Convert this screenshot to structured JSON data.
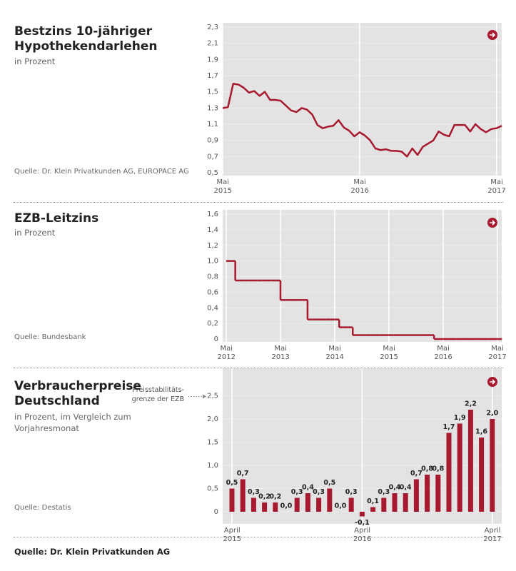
{
  "chart_data": [
    {
      "type": "line",
      "title": "Bestzins 10-jähriger Hypothekendarlehen",
      "subtitle": "in Prozent",
      "source": "Quelle: Dr. Klein Privatkunden AG, EUROPACE AG",
      "categories": [
        "Mai 2015",
        null,
        null,
        null,
        null,
        null,
        null,
        null,
        null,
        null,
        null,
        null,
        null,
        null,
        null,
        null,
        null,
        null,
        null,
        null,
        null,
        null,
        null,
        null,
        null,
        null,
        "Mai 2016",
        null,
        null,
        null,
        null,
        null,
        null,
        null,
        null,
        null,
        null,
        null,
        null,
        null,
        null,
        null,
        null,
        null,
        null,
        null,
        null,
        null,
        null,
        null,
        null,
        null,
        "Mai 2017",
        null
      ],
      "series": [
        {
          "color": "#a6192e",
          "values": [
            1.3,
            1.31,
            1.6,
            1.59,
            1.55,
            1.49,
            1.51,
            1.45,
            1.5,
            1.4,
            1.4,
            1.39,
            1.33,
            1.27,
            1.25,
            1.3,
            1.28,
            1.22,
            1.09,
            1.05,
            1.07,
            1.08,
            1.15,
            1.06,
            1.02,
            0.95,
            1.0,
            0.96,
            0.9,
            0.8,
            0.78,
            0.79,
            0.77,
            0.77,
            0.76,
            0.7,
            0.8,
            0.72,
            0.82,
            0.86,
            0.9,
            1.01,
            0.97,
            0.95,
            1.09,
            1.09,
            1.09,
            1.01,
            1.1,
            1.04,
            1.0,
            1.04,
            1.05,
            1.08
          ]
        }
      ],
      "ylim": [
        0.5,
        2.3
      ],
      "yticks": [
        {
          "value": 0.5,
          "label": "0,5"
        },
        {
          "value": 0.7,
          "label": "0,7"
        },
        {
          "value": 0.9,
          "label": "0,9"
        },
        {
          "value": 1.1,
          "label": "1,1"
        },
        {
          "value": 1.3,
          "label": "1,3"
        },
        {
          "value": 1.5,
          "label": "1,5"
        },
        {
          "value": 1.7,
          "label": "1,7"
        },
        {
          "value": 1.9,
          "label": "1,9"
        },
        {
          "value": 2.1,
          "label": "2,1"
        },
        {
          "value": 2.3,
          "label": "2,3"
        }
      ],
      "grid": true
    },
    {
      "type": "line",
      "step": true,
      "title": "EZB-Leitzins",
      "subtitle": "in Prozent",
      "source": "Quelle: Bundesbank",
      "categories": [
        "Mai 2012",
        null,
        null,
        null,
        null,
        null,
        null,
        null,
        null,
        null,
        null,
        null,
        "Mai 2013",
        null,
        null,
        null,
        null,
        null,
        null,
        null,
        null,
        null,
        null,
        null,
        "Mai 2014",
        null,
        null,
        null,
        null,
        null,
        null,
        null,
        null,
        null,
        null,
        null,
        "Mai 2015",
        null,
        null,
        null,
        null,
        null,
        null,
        null,
        null,
        null,
        null,
        null,
        "Mai 2016",
        null,
        null,
        null,
        null,
        null,
        null,
        null,
        null,
        null,
        null,
        null,
        "Mai 2017",
        null
      ],
      "series": [
        {
          "color": "#a6192e",
          "values": [
            1.0,
            1.0,
            0.75,
            0.75,
            0.75,
            0.75,
            0.75,
            0.75,
            0.75,
            0.75,
            0.75,
            0.75,
            0.5,
            0.5,
            0.5,
            0.5,
            0.5,
            0.5,
            0.25,
            0.25,
            0.25,
            0.25,
            0.25,
            0.25,
            0.25,
            0.15,
            0.15,
            0.15,
            0.05,
            0.05,
            0.05,
            0.05,
            0.05,
            0.05,
            0.05,
            0.05,
            0.05,
            0.05,
            0.05,
            0.05,
            0.05,
            0.05,
            0.05,
            0.05,
            0.05,
            0.05,
            0,
            0,
            0,
            0,
            0,
            0,
            0,
            0,
            0,
            0,
            0,
            0,
            0,
            0,
            0,
            0
          ]
        }
      ],
      "ylim": [
        0,
        1.6
      ],
      "yticks": [
        0,
        {
          "value": 0.2,
          "label": "0,2"
        },
        {
          "value": 0.4,
          "label": "0,4"
        },
        {
          "value": 0.6,
          "label": "0,6"
        },
        {
          "value": 0.8,
          "label": "0,8"
        },
        {
          "value": 1.0,
          "label": "1,0"
        },
        {
          "value": 1.2,
          "label": "1,2"
        },
        {
          "value": 1.4,
          "label": "1,4"
        },
        {
          "value": 1.6,
          "label": "1,6"
        }
      ],
      "grid": true
    },
    {
      "type": "bar",
      "title": "Verbraucherpreise Deutschland",
      "subtitle": "in Prozent, im Vergleich zum Vorjahresmonat",
      "source": "Quelle: Destatis",
      "annotation": [
        "Preisstabilitäts-",
        "grenze der EZB"
      ],
      "categories": [
        "April 2015",
        null,
        null,
        null,
        null,
        null,
        null,
        null,
        null,
        null,
        null,
        null,
        "April 2016",
        null,
        null,
        null,
        null,
        null,
        null,
        null,
        null,
        null,
        null,
        null,
        "April 2017"
      ],
      "values": [
        0.5,
        0.7,
        0.3,
        0.2,
        0.2,
        0.0,
        0.3,
        0.4,
        0.3,
        0.5,
        0.0,
        0.3,
        -0.1,
        0.1,
        0.3,
        0.4,
        0.4,
        0.7,
        0.8,
        0.8,
        1.7,
        1.9,
        2.2,
        1.6,
        2.0
      ],
      "value_labels": [
        "0,5",
        "0,7",
        "0,3",
        "0,2",
        "0,2",
        "0,0",
        "0,3",
        "0,4",
        "0,3",
        "0,5",
        "0,0",
        "0,3",
        "-0,1",
        "0,1",
        "0,3",
        "0,4",
        "0,4",
        "0,7",
        "0,8",
        "0,8",
        "1,7",
        "1,9",
        "2,2",
        "1,6",
        "2,0"
      ],
      "color": "#a6192e",
      "ylim": [
        -0.2,
        3.0
      ],
      "yticks": [
        0,
        {
          "value": 0.5,
          "label": "0,5"
        },
        {
          "value": 1.0,
          "label": "1,0"
        },
        {
          "value": 1.5,
          "label": "1,5"
        },
        {
          "value": 2.0,
          "label": "2,0"
        },
        {
          "value": 2.5,
          "label": "2,5"
        }
      ],
      "grid": true
    }
  ],
  "footer": "Quelle: Dr. Klein Privatkunden AG"
}
